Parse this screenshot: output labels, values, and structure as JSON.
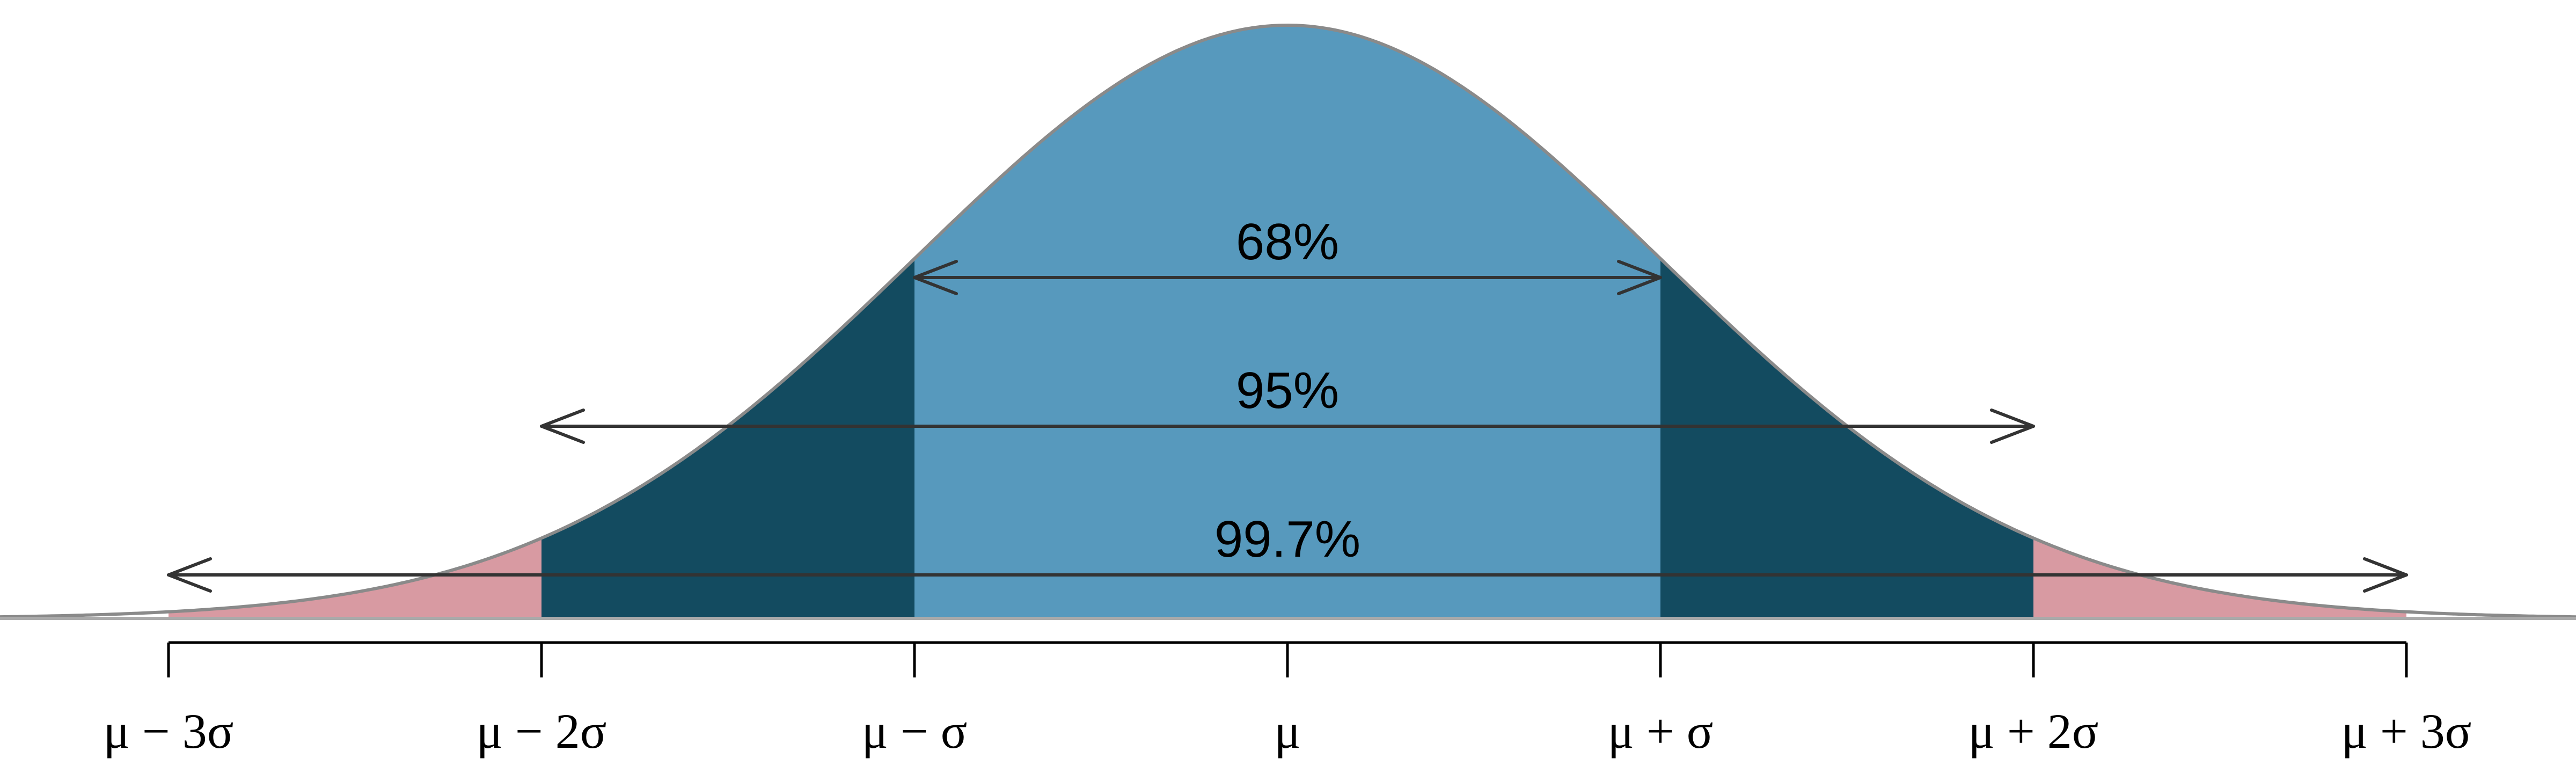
{
  "colors": {
    "background": "#ffffff",
    "within_1sd": "#5799bd",
    "between_1_2sd": "#134b60",
    "between_2_3sd": "#d89aa2",
    "curve_outline": "#8a8a8a",
    "baseline": "#aaaaaa",
    "arrow": "#333333",
    "axis": "#000000"
  },
  "intervals": [
    {
      "label": "68%",
      "range_sd": [
        -1,
        1
      ]
    },
    {
      "label": "95%",
      "range_sd": [
        -2,
        2
      ]
    },
    {
      "label": "99.7%",
      "range_sd": [
        -3,
        3
      ]
    }
  ],
  "axis": {
    "ticks": [
      {
        "sd": -3,
        "label": "μ − 3σ"
      },
      {
        "sd": -2,
        "label": "μ − 2σ"
      },
      {
        "sd": -1,
        "label": "μ − σ"
      },
      {
        "sd": 0,
        "label": "μ"
      },
      {
        "sd": 1,
        "label": "μ + σ"
      },
      {
        "sd": 2,
        "label": "μ + 2σ"
      },
      {
        "sd": 3,
        "label": "μ + 3σ"
      }
    ]
  }
}
